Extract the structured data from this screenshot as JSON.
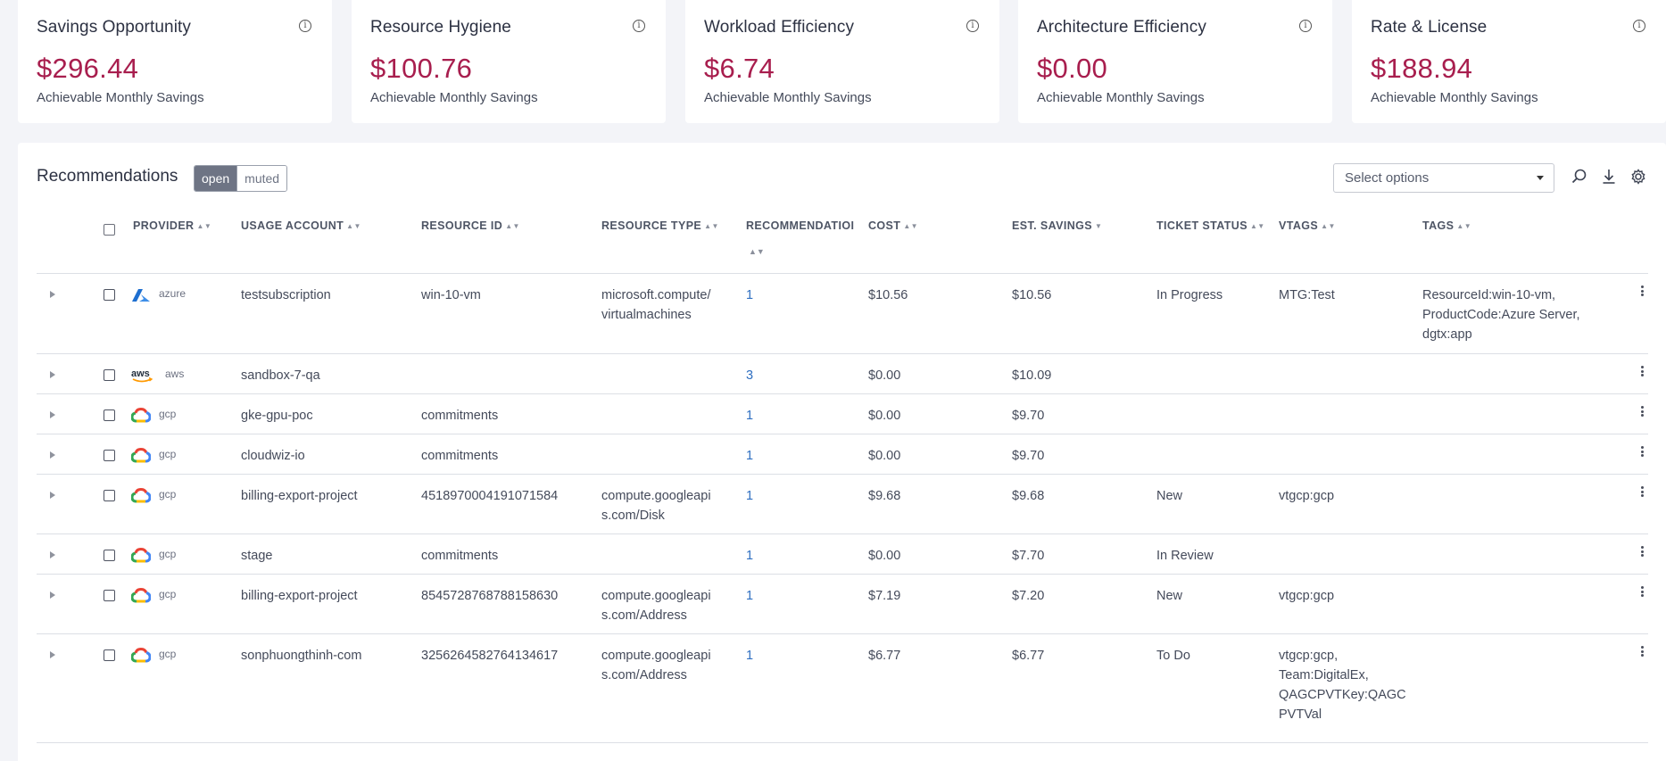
{
  "cards": [
    {
      "title": "Savings Opportunity",
      "value": "$296.44",
      "sub": "Achievable Monthly Savings"
    },
    {
      "title": "Resource Hygiene",
      "value": "$100.76",
      "sub": "Achievable Monthly Savings"
    },
    {
      "title": "Workload Efficiency",
      "value": "$6.74",
      "sub": "Achievable Monthly Savings"
    },
    {
      "title": "Architecture Efficiency",
      "value": "$0.00",
      "sub": "Achievable Monthly Savings"
    },
    {
      "title": "Rate & License",
      "value": "$188.94",
      "sub": "Achievable Monthly Savings"
    }
  ],
  "recommendations": {
    "title": "Recommendations",
    "toggle_open": "open",
    "toggle_muted": "muted",
    "select_placeholder": "Select options",
    "icons": [
      "search-icon",
      "download-icon",
      "gear-icon"
    ]
  },
  "table": {
    "headers": {
      "provider": "PROVIDER",
      "usage_account": "USAGE ACCOUNT",
      "resource_id": "RESOURCE ID",
      "resource_type": "RESOURCE TYPE",
      "recommendation": "RECOMMENDATIOI",
      "cost": "COST",
      "est_savings": "EST. SAVINGS",
      "ticket_status": "TICKET STATUS",
      "vtags": "VTAGS",
      "tags": "TAGS"
    },
    "rows": [
      {
        "provider": "azure",
        "account": "testsubscription",
        "resource_id": "win-10-vm",
        "type_l1": "microsoft.compute/",
        "type_l2": "virtualmachines",
        "rec": "1",
        "cost": "$10.56",
        "savings": "$10.56",
        "status": "In Progress",
        "vtags_l1": "MTG:Test",
        "vtags_l2": "",
        "vtags_l3": "",
        "vtags_l4": "",
        "tags_l1": "ResourceId:win-10-vm,",
        "tags_l2": "ProductCode:Azure Server,",
        "tags_l3": "dgtx:app"
      },
      {
        "provider": "aws",
        "account": "sandbox-7-qa",
        "resource_id": "",
        "type_l1": "",
        "type_l2": "",
        "rec": "3",
        "cost": "$0.00",
        "savings": "$10.09",
        "status": "",
        "vtags_l1": "",
        "vtags_l2": "",
        "vtags_l3": "",
        "vtags_l4": "",
        "tags_l1": "",
        "tags_l2": "",
        "tags_l3": ""
      },
      {
        "provider": "gcp",
        "account": "gke-gpu-poc",
        "resource_id": "commitments",
        "type_l1": "",
        "type_l2": "",
        "rec": "1",
        "cost": "$0.00",
        "savings": "$9.70",
        "status": "",
        "vtags_l1": "",
        "vtags_l2": "",
        "vtags_l3": "",
        "vtags_l4": "",
        "tags_l1": "",
        "tags_l2": "",
        "tags_l3": ""
      },
      {
        "provider": "gcp",
        "account": "cloudwiz-io",
        "resource_id": "commitments",
        "type_l1": "",
        "type_l2": "",
        "rec": "1",
        "cost": "$0.00",
        "savings": "$9.70",
        "status": "",
        "vtags_l1": "",
        "vtags_l2": "",
        "vtags_l3": "",
        "vtags_l4": "",
        "tags_l1": "",
        "tags_l2": "",
        "tags_l3": ""
      },
      {
        "provider": "gcp",
        "account": "billing-export-project",
        "resource_id": "4518970004191071584",
        "type_l1": "compute.googleapi",
        "type_l2": "s.com/Disk",
        "rec": "1",
        "cost": "$9.68",
        "savings": "$9.68",
        "status": "New",
        "vtags_l1": "vtgcp:gcp",
        "vtags_l2": "",
        "vtags_l3": "",
        "vtags_l4": "",
        "tags_l1": "",
        "tags_l2": "",
        "tags_l3": ""
      },
      {
        "provider": "gcp",
        "account": "stage",
        "resource_id": "commitments",
        "type_l1": "",
        "type_l2": "",
        "rec": "1",
        "cost": "$0.00",
        "savings": "$7.70",
        "status": "In Review",
        "vtags_l1": "",
        "vtags_l2": "",
        "vtags_l3": "",
        "vtags_l4": "",
        "tags_l1": "",
        "tags_l2": "",
        "tags_l3": ""
      },
      {
        "provider": "gcp",
        "account": "billing-export-project",
        "resource_id": "8545728768788158630",
        "type_l1": "compute.googleapi",
        "type_l2": "s.com/Address",
        "rec": "1",
        "cost": "$7.19",
        "savings": "$7.20",
        "status": "New",
        "vtags_l1": "vtgcp:gcp",
        "vtags_l2": "",
        "vtags_l3": "",
        "vtags_l4": "",
        "tags_l1": "",
        "tags_l2": "",
        "tags_l3": ""
      },
      {
        "provider": "gcp",
        "account": "sonphuongthinh-com",
        "resource_id": "3256264582764134617",
        "type_l1": "compute.googleapi",
        "type_l2": "s.com/Address",
        "rec": "1",
        "cost": "$6.77",
        "savings": "$6.77",
        "status": "To Do",
        "vtags_l1": "vtgcp:gcp,",
        "vtags_l2": "Team:DigitalEx,",
        "vtags_l3": "QAGCPVTKey:QAGC",
        "vtags_l4": "PVTVal",
        "tags_l1": "",
        "tags_l2": "",
        "tags_l3": ""
      }
    ]
  },
  "colors": {
    "accent_value": "#a81e4e",
    "link": "#2f6fc1",
    "toggle_active": "#6e7484"
  }
}
